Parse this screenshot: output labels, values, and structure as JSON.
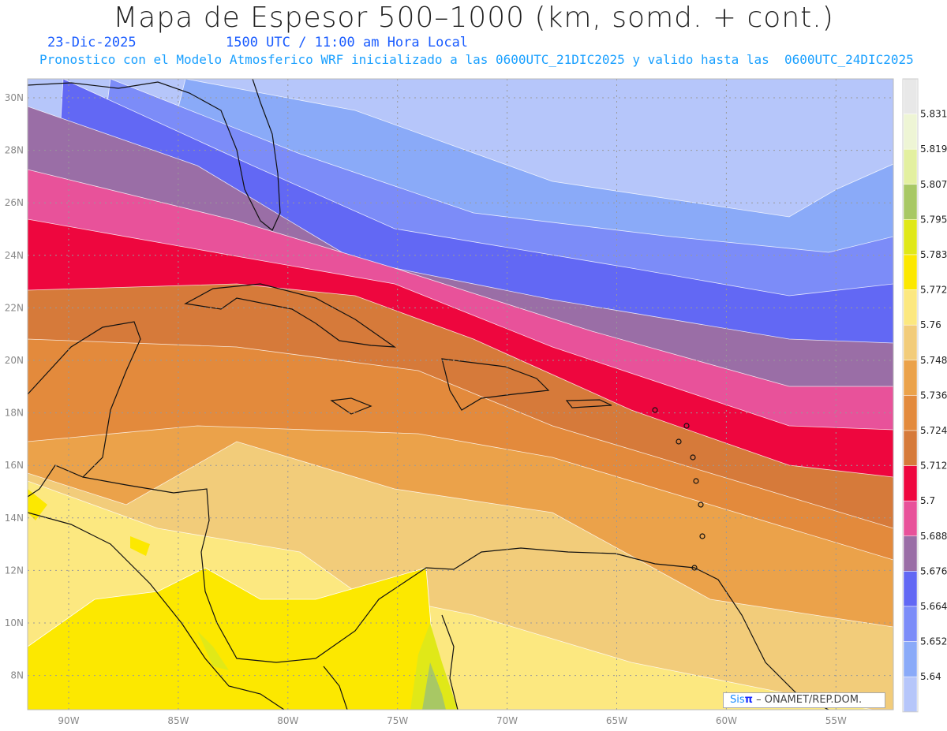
{
  "header": {
    "title": "Mapa de Espesor 500–1000 (km, somd. + cont.)",
    "date": "23-Dic-2025",
    "time": "1500 UTC / 11:00 am Hora Local",
    "forecast_info": "Pronostico con el Modelo Atmosferico WRF inicializado a las 0600UTC_21DIC2025 y valido hasta las  0600UTC_24DIC2025"
  },
  "axes": {
    "lon_labels": [
      "90W",
      "85W",
      "80W",
      "75W",
      "70W",
      "65W",
      "60W",
      "55W"
    ],
    "lat_labels": [
      "30N",
      "28N",
      "26N",
      "24N",
      "22N",
      "20N",
      "18N",
      "16N",
      "14N",
      "12N",
      "10N",
      "8N"
    ]
  },
  "colorbar": {
    "labels": [
      "5.831",
      "5.819",
      "5.807",
      "5.795",
      "5.783",
      "5.772",
      "5.76",
      "5.748",
      "5.736",
      "5.724",
      "5.712",
      "5.7",
      "5.688",
      "5.676",
      "5.664",
      "5.652",
      "5.64"
    ],
    "colors": [
      "#e8e8e8",
      "#eef5d5",
      "#e3f0a0",
      "#a8c864",
      "#e0e818",
      "#fce800",
      "#fce880",
      "#f2cc7a",
      "#eba24a",
      "#e38a3c",
      "#d67a3a",
      "#ee063e",
      "#e8529a",
      "#9a6ea6",
      "#6268f4",
      "#7c8cf8",
      "#8aaaf8",
      "#b6c6fa"
    ]
  },
  "credit": {
    "brand": "Sis",
    "brand_symbol": "π",
    "org": "–  ONAMET/REP.DOM."
  }
}
